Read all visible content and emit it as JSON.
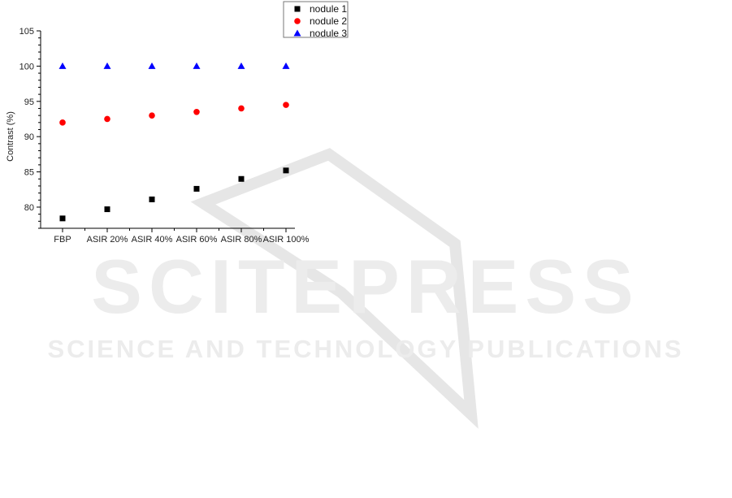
{
  "chart_data": {
    "type": "scatter",
    "title": "",
    "xlabel": "",
    "ylabel": "Contrast (%)",
    "categories": [
      "FBP",
      "ASIR 20%",
      "ASIR 40%",
      "ASIR 60%",
      "ASIR 80%",
      "ASIR 100%"
    ],
    "ylim": [
      77,
      105
    ],
    "yticks": [
      80,
      85,
      90,
      95,
      100,
      105
    ],
    "grid": false,
    "legend_position": "top-right",
    "series": [
      {
        "name": "nodule 1",
        "marker": "square",
        "color": "#000000",
        "values": [
          78.4,
          79.7,
          81.1,
          82.6,
          84.0,
          85.2
        ]
      },
      {
        "name": "nodule 2",
        "marker": "circle",
        "color": "#ff0000",
        "values": [
          92.0,
          92.5,
          93.0,
          93.5,
          94.0,
          94.5
        ]
      },
      {
        "name": "nodule 3",
        "marker": "triangle",
        "color": "#0000ff",
        "values": [
          100,
          100,
          100,
          100,
          100,
          100
        ]
      }
    ]
  },
  "watermark": {
    "title": "SCITEPRESS",
    "subtitle": "SCIENCE AND TECHNOLOGY PUBLICATIONS"
  }
}
